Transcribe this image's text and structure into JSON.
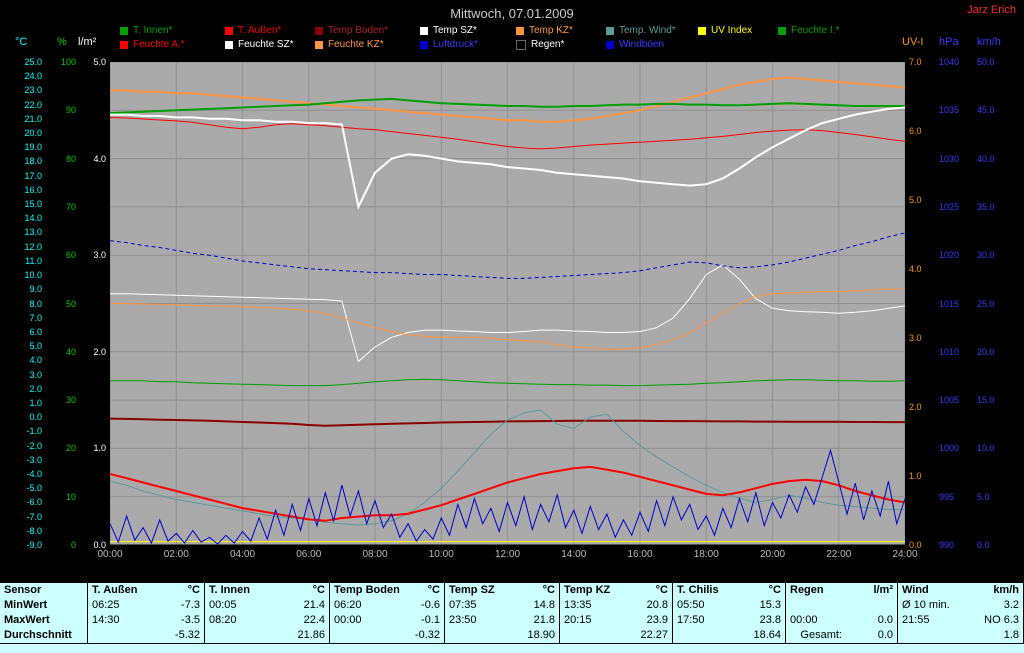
{
  "page": {
    "title": "Mittwoch, 07.01.2009",
    "owner": "Jarz Erich"
  },
  "legend": {
    "rows": [
      [
        {
          "key": "t-innen",
          "label": "T. Innen*",
          "color": "#00a000"
        },
        {
          "key": "t-aussen",
          "label": "T. Außen*",
          "color": "#ff0000"
        },
        {
          "key": "temp-boden",
          "label": "Temp Boden*",
          "color": "#8b0000",
          "text_color": "#b22222"
        },
        {
          "key": "temp-sz",
          "label": "Temp SZ*",
          "color": "#ffffff"
        },
        {
          "key": "temp-kz",
          "label": "Temp KZ*",
          "color": "#ff9540"
        },
        {
          "key": "temp-wind",
          "label": "Temp. Wind*",
          "color": "#5c9a9a"
        },
        {
          "key": "uv-index",
          "label": "UV Index",
          "color": "#ffff00"
        },
        {
          "key": "feuchte-i",
          "label": "Feuchte I.*",
          "color": "#00a000"
        }
      ],
      [
        {
          "key": "feuchte-a",
          "label": "Feuchte A.*",
          "color": "#ff0000"
        },
        {
          "key": "feuchte-sz",
          "label": "Feuchte SZ*",
          "color": "#ffffff"
        },
        {
          "key": "feuchte-kz",
          "label": "Feuchte KZ*",
          "color": "#ff9540"
        },
        {
          "key": "luftdruck",
          "label": "Luftdruck*",
          "color": "#0000cc",
          "text_color": "#3a3aff"
        },
        {
          "key": "regen",
          "label": "Regen*",
          "color": "#000000",
          "text_color": "#ffffff"
        },
        {
          "key": "windboeen",
          "label": "Windböen",
          "color": "#0000cc",
          "text_color": "#3a3aff"
        }
      ]
    ]
  },
  "chart_data": {
    "type": "line",
    "title": "Mittwoch, 07.01.2009",
    "x_axis": {
      "label": "time",
      "start_hour": 0,
      "end_hour": 24,
      "tick_labels": [
        "00:00",
        "02:00",
        "04:00",
        "06:00",
        "08:00",
        "10:00",
        "12:00",
        "14:00",
        "16:00",
        "18:00",
        "20:00",
        "22:00",
        "24:00"
      ]
    },
    "axes": {
      "celsius": {
        "title": "°C",
        "color": "#00ffff",
        "max": 25,
        "min": -9,
        "labels": [
          "25.0",
          "24.0",
          "23.0",
          "22.0",
          "21.0",
          "20.0",
          "19.0",
          "18.0",
          "17.0",
          "16.0",
          "15.0",
          "14.0",
          "13.0",
          "12.0",
          "11.0",
          "10.0",
          "9.0",
          "8.0",
          "7.0",
          "6.0",
          "5.0",
          "4.0",
          "3.0",
          "2.0",
          "1.0",
          "0.0",
          "-1.0",
          "-2.0",
          "-3.0",
          "-4.0",
          "-5.0",
          "-6.0",
          "-7.0",
          "-8.0",
          "-9.0"
        ]
      },
      "percent": {
        "title": "%",
        "color": "#00cc00",
        "max": 100,
        "min": 0,
        "labels": [
          "100",
          "90",
          "80",
          "70",
          "60",
          "50",
          "40",
          "30",
          "20",
          "10",
          "0"
        ]
      },
      "lm2": {
        "title": "l/m²",
        "color": "#ffffff",
        "max": 5,
        "min": 0,
        "labels": [
          "5.0",
          "4.0",
          "3.0",
          "2.0",
          "1.0",
          "0.0"
        ]
      },
      "uv": {
        "title": "UV-I",
        "color": "#ff9900",
        "max": 7,
        "min": 0,
        "labels": [
          "7.0",
          "6.0",
          "5.0",
          "4.0",
          "3.0",
          "2.0",
          "1.0",
          "0.0"
        ]
      },
      "hpa": {
        "title": "hPa",
        "color": "#3a3aff",
        "max": 1040,
        "min": 990,
        "labels": [
          "1040",
          "1035",
          "1030",
          "1025",
          "1020",
          "1015",
          "1010",
          "1005",
          "1000",
          "995",
          "990"
        ]
      },
      "kmh": {
        "title": "km/h",
        "color": "#3a3aff",
        "max": 50,
        "min": 0,
        "labels": [
          "50.0",
          "45.0",
          "40.0",
          "35.0",
          "30.0",
          "25.0",
          "20.0",
          "15.0",
          "10.0",
          "5.0",
          "0.0"
        ]
      }
    },
    "series": [
      {
        "key": "regen",
        "name": "Regen",
        "axis": "lm2",
        "color": "#000000",
        "width": 1,
        "values": [
          0,
          0
        ]
      },
      {
        "key": "uv-index",
        "name": "UV Index",
        "axis": "uv",
        "color": "#ffff00",
        "width": 1,
        "values": [
          0.05,
          0.05
        ]
      },
      {
        "key": "feuchte-i",
        "name": "Feuchte I.",
        "axis": "percent",
        "color": "#00a000",
        "width": 1,
        "values": [
          34,
          34,
          34,
          33.8,
          33.8,
          33.6,
          33.5,
          33.4,
          33.3,
          33.2,
          33.1,
          33,
          33,
          33,
          33.2,
          33.5,
          33.8,
          34,
          34.2,
          34.3,
          34.2,
          34,
          33.8,
          33.6,
          33.5,
          33.4,
          33.3,
          33.2,
          33.2,
          33.1,
          33.1,
          33,
          33,
          33.1,
          33.2,
          33.3,
          33.5,
          33.6,
          33.8,
          34,
          34.1,
          34.2,
          34.2,
          34.1,
          34,
          34,
          33.9,
          33.9,
          34
        ]
      },
      {
        "key": "feuchte-a",
        "name": "Feuchte A.",
        "axis": "percent",
        "color": "#ff0000",
        "width": 1,
        "values": [
          88.5,
          88.4,
          88.2,
          88.0,
          87.8,
          87.5,
          87.0,
          86.5,
          86.2,
          86.5,
          87.0,
          87.2,
          87.0,
          86.8,
          86.5,
          86.2,
          86.0,
          85.6,
          85.2,
          84.8,
          84.4,
          84.0,
          83.5,
          83.0,
          82.5,
          82.2,
          82.0,
          82.2,
          82.5,
          82.8,
          83.0,
          83.2,
          83.4,
          83.6,
          83.8,
          84.0,
          84.3,
          84.6,
          85.0,
          85.4,
          85.7,
          85.9,
          86.0,
          85.8,
          85.4,
          85.0,
          84.5,
          84.0,
          83.6
        ]
      },
      {
        "key": "feuchte-sz",
        "name": "Feuchte SZ",
        "axis": "percent",
        "color": "#ffffff",
        "width": 1,
        "values": [
          52,
          52,
          51.9,
          51.8,
          51.7,
          51.6,
          51.5,
          51.4,
          51.3,
          51.2,
          51.1,
          51,
          50.9,
          50.8,
          50.5,
          38,
          41,
          43,
          44,
          44.5,
          44.5,
          44.3,
          44.2,
          44,
          44,
          44.2,
          44.5,
          44.5,
          44.3,
          44.2,
          44,
          44,
          44.2,
          45,
          47,
          51,
          56,
          58,
          55,
          51,
          49,
          48.5,
          48.3,
          48.2,
          48,
          48.2,
          48.5,
          49,
          49.5
        ]
      },
      {
        "key": "feuchte-kz",
        "name": "Feuchte KZ",
        "axis": "percent",
        "color": "#ff9540",
        "width": 1,
        "values": [
          50,
          50,
          49.9,
          49.8,
          49.7,
          49.6,
          49.5,
          49.4,
          49.3,
          49.2,
          49,
          48.8,
          48.5,
          48,
          47,
          46,
          45,
          44.2,
          43.5,
          43.2,
          43,
          43,
          43,
          42.8,
          42.5,
          42.3,
          42,
          41.5,
          41,
          40.8,
          40.5,
          40.5,
          40.8,
          41.5,
          42.5,
          44,
          46,
          48,
          50,
          51.5,
          52,
          52.2,
          52.3,
          52.4,
          52.5,
          52.6,
          52.8,
          53,
          53
        ]
      },
      {
        "key": "luftdruck",
        "name": "Luftdruck",
        "axis": "hpa",
        "color": "#0000cc",
        "width": 1,
        "dash": "4 3",
        "values": [
          1021.5,
          1021.3,
          1021.0,
          1020.8,
          1020.5,
          1020.2,
          1020.0,
          1019.7,
          1019.4,
          1019.2,
          1019.0,
          1018.8,
          1018.6,
          1018.5,
          1018.4,
          1018.3,
          1018.2,
          1018.2,
          1018.1,
          1018.0,
          1018.0,
          1017.9,
          1017.8,
          1017.7,
          1017.6,
          1017.6,
          1017.7,
          1017.8,
          1017.9,
          1018.0,
          1018.1,
          1018.2,
          1018.4,
          1018.7,
          1019.0,
          1019.3,
          1019.2,
          1018.9,
          1018.7,
          1018.8,
          1019.0,
          1019.3,
          1019.7,
          1020.1,
          1020.5,
          1021.0,
          1021.4,
          1021.9,
          1022.3
        ]
      },
      {
        "key": "temp-boden",
        "name": "Temp Boden",
        "axis": "celsius",
        "color": "#8b0000",
        "width": 2,
        "values": [
          -0.1,
          -0.12,
          -0.15,
          -0.18,
          -0.2,
          -0.23,
          -0.26,
          -0.3,
          -0.34,
          -0.38,
          -0.42,
          -0.47,
          -0.55,
          -0.6,
          -0.57,
          -0.53,
          -0.5,
          -0.47,
          -0.44,
          -0.41,
          -0.38,
          -0.36,
          -0.34,
          -0.32,
          -0.3,
          -0.29,
          -0.28,
          -0.27,
          -0.26,
          -0.25,
          -0.25,
          -0.26,
          -0.26,
          -0.27,
          -0.28,
          -0.28,
          -0.29,
          -0.3,
          -0.3,
          -0.31,
          -0.31,
          -0.32,
          -0.32,
          -0.33,
          -0.33,
          -0.34,
          -0.34,
          -0.35,
          -0.35
        ]
      },
      {
        "key": "temp-wind",
        "name": "Temp. Wind",
        "axis": "celsius",
        "color": "#5c9a9a",
        "width": 1,
        "values": [
          -4.5,
          -4.8,
          -5.2,
          -5.5,
          -5.8,
          -6.0,
          -6.2,
          -6.4,
          -6.6,
          -6.8,
          -7.0,
          -7.1,
          -7.2,
          -7.4,
          -7.5,
          -7.6,
          -7.5,
          -7.3,
          -6.8,
          -6.0,
          -5.0,
          -3.8,
          -2.5,
          -1.2,
          -0.2,
          0.3,
          0.5,
          -0.5,
          -0.8,
          0.0,
          0.2,
          -1.0,
          -2.0,
          -2.8,
          -3.5,
          -4.2,
          -4.8,
          -5.3,
          -5.7,
          -6.0,
          -5.8,
          -5.5,
          -5.7,
          -6.0,
          -6.2,
          -6.3,
          -6.4,
          -6.5,
          -6.5
        ]
      },
      {
        "key": "temp-kz",
        "name": "Temp KZ",
        "axis": "celsius",
        "color": "#ff9540",
        "width": 2,
        "values": [
          23.0,
          23.0,
          22.9,
          22.9,
          22.8,
          22.8,
          22.7,
          22.6,
          22.5,
          22.4,
          22.3,
          22.2,
          22.1,
          22.0,
          21.9,
          21.8,
          21.7,
          21.6,
          21.5,
          21.4,
          21.3,
          21.2,
          21.1,
          21.0,
          20.9,
          20.9,
          20.8,
          20.8,
          20.9,
          21.0,
          21.2,
          21.4,
          21.6,
          21.9,
          22.2,
          22.5,
          22.8,
          23.1,
          23.4,
          23.6,
          23.8,
          23.9,
          23.8,
          23.7,
          23.6,
          23.5,
          23.4,
          23.3,
          23.2
        ]
      },
      {
        "key": "t-innen",
        "name": "T. Innen",
        "axis": "celsius",
        "color": "#00a000",
        "width": 2,
        "values": [
          21.4,
          21.45,
          21.5,
          21.55,
          21.6,
          21.65,
          21.7,
          21.75,
          21.8,
          21.85,
          21.9,
          21.95,
          22.0,
          22.1,
          22.2,
          22.3,
          22.35,
          22.4,
          22.3,
          22.2,
          22.1,
          22.05,
          22.0,
          21.95,
          21.9,
          21.9,
          21.85,
          21.85,
          21.9,
          21.9,
          21.95,
          22.0,
          22.0,
          22.05,
          22.05,
          22.0,
          22.0,
          21.95,
          21.95,
          22.0,
          22.05,
          22.1,
          22.05,
          22.0,
          21.95,
          21.9,
          21.9,
          21.9,
          21.9
        ]
      },
      {
        "key": "temp-sz",
        "name": "Temp SZ",
        "axis": "celsius",
        "color": "#ffffff",
        "width": 2,
        "values": [
          21.3,
          21.3,
          21.2,
          21.2,
          21.1,
          21.1,
          21.0,
          21.0,
          20.9,
          20.9,
          20.8,
          20.8,
          20.7,
          20.7,
          20.6,
          14.8,
          17.2,
          18.2,
          18.5,
          18.4,
          18.2,
          18.0,
          17.9,
          17.8,
          17.6,
          17.5,
          17.4,
          17.2,
          17.1,
          17.0,
          16.9,
          16.8,
          16.6,
          16.5,
          16.4,
          16.3,
          16.4,
          16.8,
          17.5,
          18.3,
          19.0,
          19.6,
          20.2,
          20.7,
          21.0,
          21.3,
          21.5,
          21.7,
          21.8
        ]
      },
      {
        "key": "t-aussen",
        "name": "T. Außen",
        "axis": "celsius",
        "color": "#ff0000",
        "width": 2,
        "values": [
          -4.0,
          -4.3,
          -4.6,
          -4.9,
          -5.2,
          -5.5,
          -5.8,
          -6.1,
          -6.4,
          -6.6,
          -6.8,
          -7.0,
          -7.2,
          -7.3,
          -7.1,
          -7.0,
          -6.9,
          -6.9,
          -6.8,
          -6.5,
          -6.2,
          -5.8,
          -5.4,
          -5.0,
          -4.6,
          -4.3,
          -4.0,
          -3.8,
          -3.6,
          -3.5,
          -3.7,
          -3.9,
          -4.2,
          -4.5,
          -4.8,
          -5.1,
          -5.4,
          -5.5,
          -5.3,
          -5.0,
          -4.7,
          -4.5,
          -4.4,
          -4.5,
          -4.8,
          -5.2,
          -5.5,
          -5.8,
          -6.0
        ]
      },
      {
        "key": "windboeen",
        "name": "Windböen",
        "axis": "kmh",
        "color": "#0000cc",
        "width": 1,
        "values": [
          2.2,
          0.3,
          3.0,
          0.5,
          1.8,
          0.2,
          2.6,
          0.4,
          1.2,
          0.2,
          1.5,
          0.3,
          0.8,
          0.1,
          1.0,
          0.2,
          1.4,
          0.4,
          2.8,
          0.6,
          3.6,
          1.0,
          4.2,
          1.5,
          4.8,
          2.0,
          5.4,
          2.5,
          6.2,
          3.0,
          5.6,
          2.2,
          4.6,
          1.8,
          3.2,
          0.8,
          2.2,
          0.4,
          1.6,
          0.6,
          2.8,
          1.0,
          4.2,
          1.8,
          4.8,
          2.2,
          3.8,
          1.4,
          4.4,
          2.0,
          5.0,
          1.6,
          4.2,
          2.4,
          5.2,
          1.8,
          3.6,
          1.2,
          4.0,
          1.6,
          3.2,
          0.8,
          2.6,
          1.0,
          3.4,
          1.4,
          4.6,
          2.0,
          5.0,
          2.6,
          4.2,
          1.6,
          3.0,
          1.0,
          3.8,
          1.8,
          4.8,
          2.4,
          5.4,
          2.0,
          4.4,
          2.8,
          5.2,
          3.4,
          6.0,
          4.2,
          7.0,
          9.8,
          6.5,
          3.2,
          6.4,
          2.6,
          5.6,
          3.0,
          6.6,
          2.2,
          4.8
        ]
      }
    ]
  },
  "stats_table": {
    "corner_label": "Sensor",
    "row_labels": [
      "MinWert",
      "MaxWert",
      "Durchschnitt"
    ],
    "groups": [
      {
        "name": "T. Außen",
        "unit": "°C",
        "min": [
          "06:25",
          "-7.3"
        ],
        "max": [
          "14:30",
          "-3.5"
        ],
        "avg": [
          "",
          "-5.32"
        ]
      },
      {
        "name": "T. Innen",
        "unit": "°C",
        "min": [
          "00:05",
          "21.4"
        ],
        "max": [
          "08:20",
          "22.4"
        ],
        "avg": [
          "",
          "21.86"
        ]
      },
      {
        "name": "Temp Boden",
        "unit": "°C",
        "min": [
          "06:20",
          "-0.6"
        ],
        "max": [
          "00:00",
          "-0.1"
        ],
        "avg": [
          "",
          "-0.32"
        ]
      },
      {
        "name": "Temp SZ",
        "unit": "°C",
        "min": [
          "07:35",
          "14.8"
        ],
        "max": [
          "23:50",
          "21.8"
        ],
        "avg": [
          "",
          "18.90"
        ]
      },
      {
        "name": "Temp KZ",
        "unit": "°C",
        "min": [
          "13:35",
          "20.8"
        ],
        "max": [
          "20:15",
          "23.9"
        ],
        "avg": [
          "",
          "22.27"
        ]
      },
      {
        "name": "T. Chilis",
        "unit": "°C",
        "min": [
          "05:50",
          "15.3"
        ],
        "max": [
          "17:50",
          "23.8"
        ],
        "avg": [
          "",
          "18.64"
        ]
      },
      {
        "name": "Regen",
        "unit": "l/m²",
        "min": [
          "",
          ""
        ],
        "max": [
          "00:00",
          "0.0"
        ],
        "avg": [
          "Gesamt:",
          "0.0"
        ]
      },
      {
        "name": "Wind",
        "unit": "km/h",
        "min": [
          "Ø 10 min.",
          "3.2"
        ],
        "max": [
          "21:55",
          "NO 6.3"
        ],
        "avg": [
          "",
          "1.8"
        ]
      }
    ]
  }
}
